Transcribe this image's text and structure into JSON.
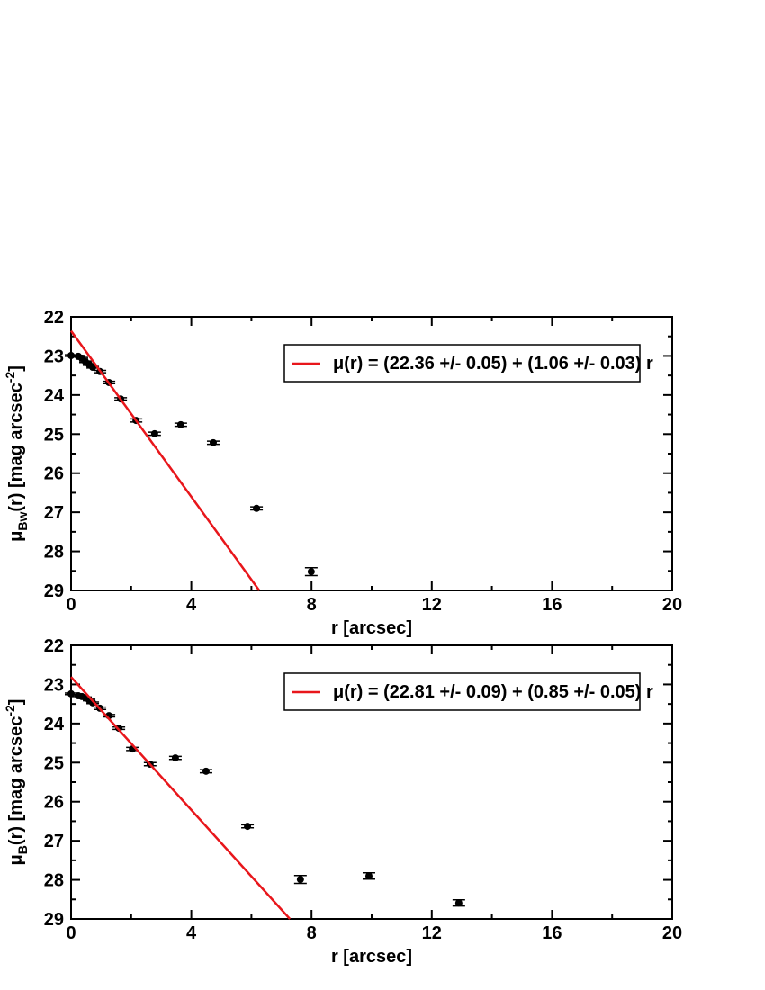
{
  "chart_data": [
    {
      "type": "scatter",
      "xlabel": "r [arcsec]",
      "ylabel": {
        "symbol": "μ",
        "sub": "Bw",
        "text": "(r) [mag arcsec",
        "sup": "-2",
        "end": "]"
      },
      "xlim": [
        0,
        20
      ],
      "xticks": [
        0,
        4,
        8,
        12,
        16,
        20
      ],
      "ylim": [
        29,
        22
      ],
      "yticks": [
        22,
        23,
        24,
        25,
        26,
        27,
        28,
        29
      ],
      "series": [
        {
          "type": "errorbar",
          "color": "#000000",
          "x": [
            0,
            0.24,
            0.36,
            0.48,
            0.6,
            0.72,
            0.96,
            1.26,
            1.65,
            2.16,
            2.78,
            3.65,
            4.73,
            6.17,
            7.99
          ],
          "values": [
            22.99,
            23.01,
            23.06,
            23.15,
            23.22,
            23.29,
            23.4,
            23.68,
            24.1,
            24.65,
            24.99,
            24.76,
            25.22,
            26.9,
            28.52
          ],
          "errors": [
            0.02,
            0.02,
            0.02,
            0.02,
            0.02,
            0.02,
            0.03,
            0.03,
            0.03,
            0.04,
            0.04,
            0.04,
            0.04,
            0.04,
            0.1
          ]
        },
        {
          "type": "line",
          "name": "μ(r) = (22.36 +/- 0.05) + (1.06 +/- 0.03) r",
          "color": "#e8161b",
          "x": [
            0,
            6.26
          ],
          "values": [
            22.36,
            29
          ]
        }
      ]
    },
    {
      "type": "scatter",
      "xlabel": "r [arcsec]",
      "ylabel": {
        "symbol": "μ",
        "sub": "B",
        "text": "(r) [mag arcsec",
        "sup": "-2",
        "end": "]"
      },
      "xlim": [
        0,
        20
      ],
      "xticks": [
        0,
        4,
        8,
        12,
        16,
        20
      ],
      "ylim": [
        29,
        22
      ],
      "yticks": [
        22,
        23,
        24,
        25,
        26,
        27,
        28,
        29
      ],
      "series": [
        {
          "type": "errorbar",
          "color": "#000000",
          "x": [
            0,
            0.24,
            0.36,
            0.48,
            0.6,
            0.72,
            0.96,
            1.26,
            1.59,
            2.04,
            2.63,
            3.47,
            4.49,
            5.87,
            7.63,
            9.91,
            12.9
          ],
          "values": [
            23.24,
            23.29,
            23.31,
            23.34,
            23.4,
            23.47,
            23.61,
            23.8,
            24.12,
            24.65,
            25.04,
            24.88,
            25.22,
            26.63,
            27.99,
            27.9,
            28.59
          ],
          "errors": [
            0.02,
            0.02,
            0.02,
            0.02,
            0.02,
            0.02,
            0.03,
            0.03,
            0.03,
            0.04,
            0.04,
            0.04,
            0.04,
            0.04,
            0.1,
            0.08,
            0.08
          ]
        },
        {
          "type": "line",
          "name": "μ(r) = (22.81 +/- 0.09) + (0.85 +/- 0.05) r",
          "color": "#e8161b",
          "x": [
            0,
            7.28
          ],
          "values": [
            22.81,
            29
          ]
        }
      ]
    }
  ]
}
